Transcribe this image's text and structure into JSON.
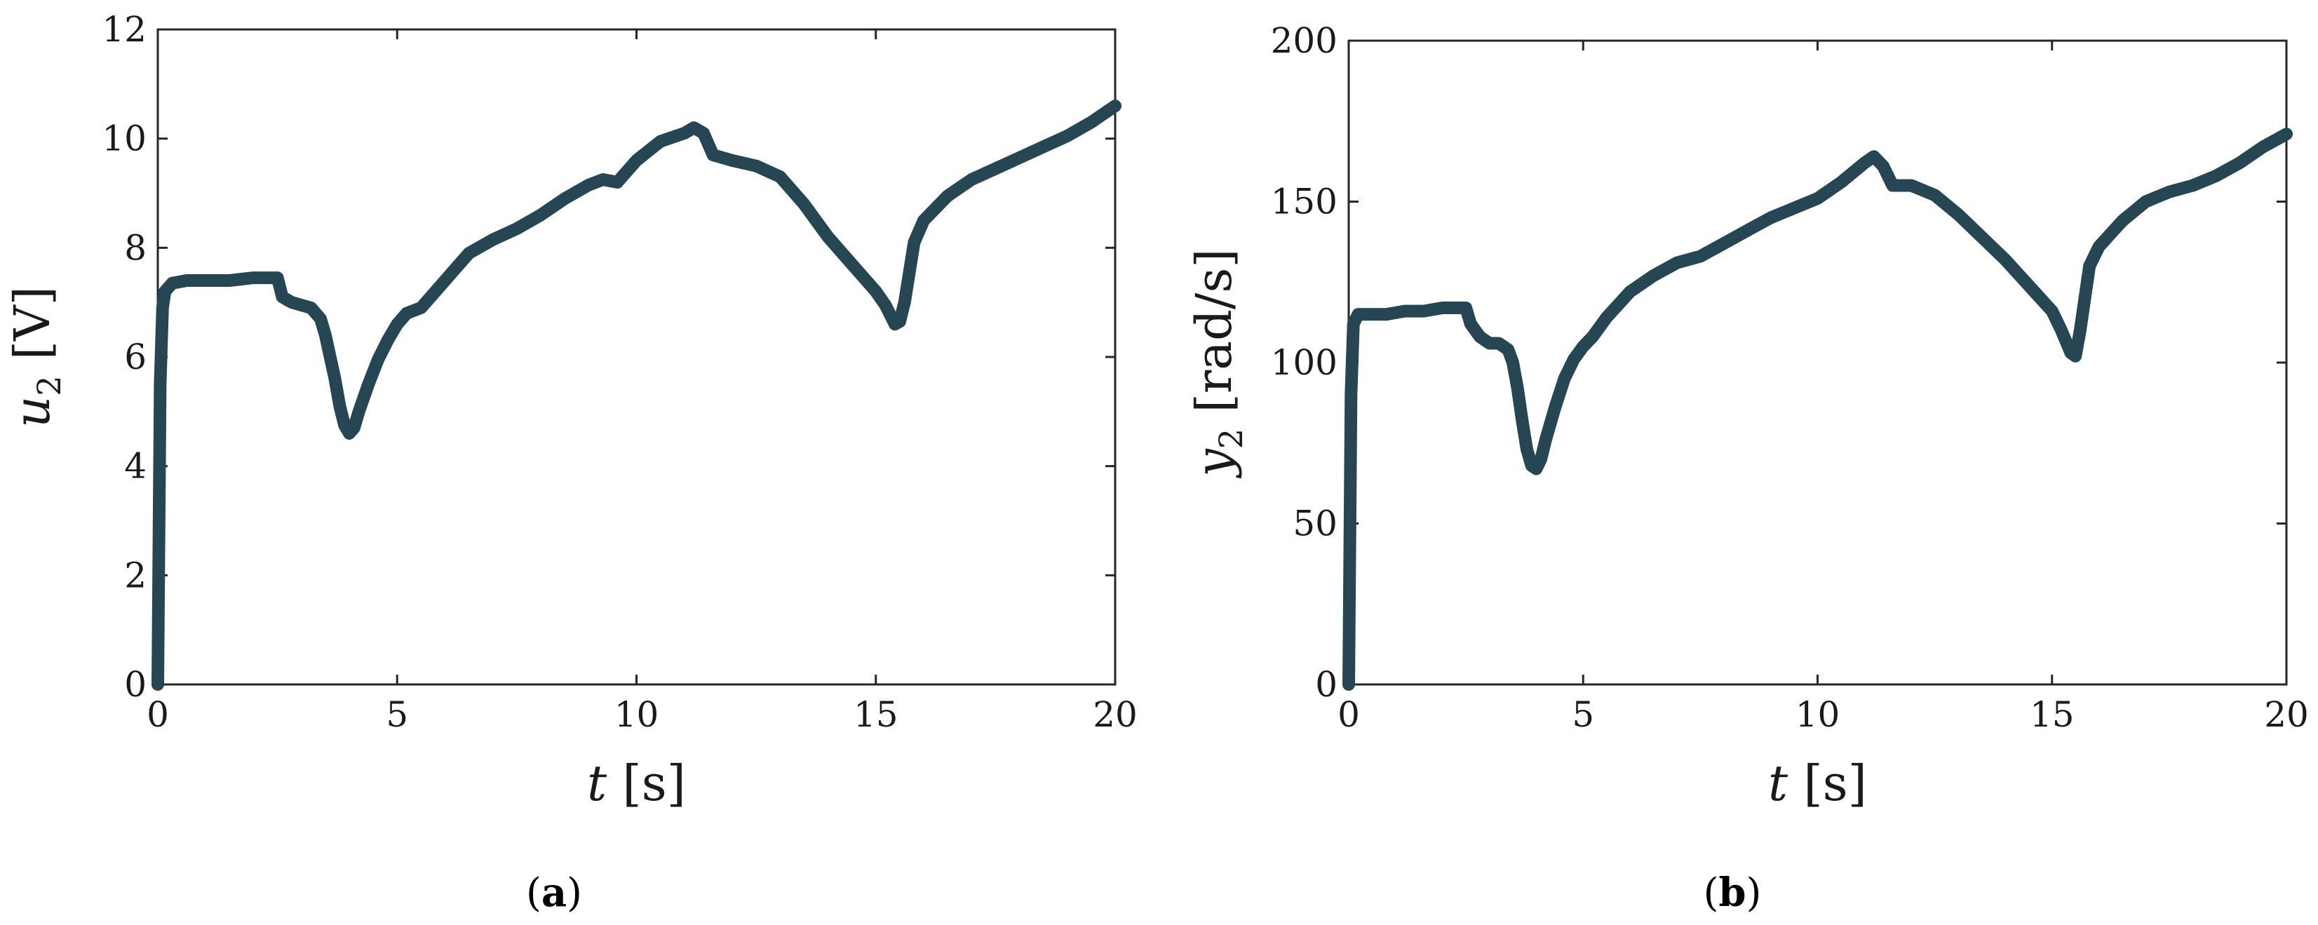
{
  "colors": {
    "series": "#264653",
    "axis": "#262626"
  },
  "chart_data": [
    {
      "type": "line",
      "panel_label": "a",
      "xlabel": {
        "var": "t",
        "unit": "[s]"
      },
      "ylabel": {
        "var": "u",
        "sub": "2",
        "unit": "[V]"
      },
      "xlim": [
        0,
        20
      ],
      "ylim": [
        0,
        12
      ],
      "xticks": [
        0,
        5,
        10,
        15,
        20
      ],
      "yticks": [
        0,
        2,
        4,
        6,
        8,
        10,
        12
      ],
      "grid": false,
      "series": [
        {
          "x": [
            0,
            0.05,
            0.1,
            0.15,
            0.3,
            0.6,
            1.0,
            1.5,
            2.0,
            2.5,
            2.6,
            2.8,
            3.0,
            3.2,
            3.4,
            3.5,
            3.6,
            3.7,
            3.8,
            3.9,
            4.0,
            4.1,
            4.2,
            4.4,
            4.6,
            4.8,
            5.0,
            5.2,
            5.5,
            6.0,
            6.5,
            7.0,
            7.5,
            8.0,
            8.5,
            9.0,
            9.3,
            9.6,
            10.0,
            10.5,
            11.0,
            11.2,
            11.4,
            11.6,
            12.0,
            12.5,
            13.0,
            13.5,
            14.0,
            14.5,
            15.0,
            15.2,
            15.4,
            15.5,
            15.6,
            15.8,
            16.0,
            16.5,
            17.0,
            17.5,
            18.0,
            18.5,
            19.0,
            19.5,
            20.0
          ],
          "y": [
            0,
            5.5,
            6.9,
            7.2,
            7.35,
            7.4,
            7.4,
            7.4,
            7.45,
            7.45,
            7.1,
            7.0,
            6.95,
            6.9,
            6.7,
            6.4,
            6.0,
            5.6,
            5.1,
            4.75,
            4.6,
            4.7,
            5.0,
            5.5,
            5.95,
            6.3,
            6.6,
            6.8,
            6.9,
            7.4,
            7.9,
            8.15,
            8.35,
            8.6,
            8.9,
            9.15,
            9.25,
            9.2,
            9.6,
            9.95,
            10.1,
            10.2,
            10.1,
            9.7,
            9.6,
            9.5,
            9.3,
            8.8,
            8.2,
            7.7,
            7.2,
            6.95,
            6.6,
            6.65,
            7.0,
            8.1,
            8.5,
            8.95,
            9.25,
            9.45,
            9.65,
            9.85,
            10.05,
            10.3,
            10.6
          ]
        }
      ]
    },
    {
      "type": "line",
      "panel_label": "b",
      "xlabel": {
        "var": "t",
        "unit": "[s]"
      },
      "ylabel": {
        "var": "y",
        "sub": "2",
        "unit": "[rad/s]"
      },
      "xlim": [
        0,
        20
      ],
      "ylim": [
        0,
        200
      ],
      "xticks": [
        0,
        5,
        10,
        15,
        20
      ],
      "yticks": [
        0,
        50,
        100,
        150,
        200
      ],
      "grid": false,
      "series": [
        {
          "x": [
            0,
            0.05,
            0.1,
            0.2,
            0.4,
            0.8,
            1.2,
            1.6,
            2.0,
            2.5,
            2.6,
            2.8,
            3.0,
            3.2,
            3.4,
            3.5,
            3.6,
            3.7,
            3.8,
            3.9,
            4.0,
            4.1,
            4.2,
            4.4,
            4.6,
            4.8,
            5.0,
            5.2,
            5.5,
            6.0,
            6.5,
            7.0,
            7.5,
            8.0,
            8.5,
            9.0,
            9.5,
            10.0,
            10.5,
            11.0,
            11.2,
            11.4,
            11.6,
            12.0,
            12.5,
            13.0,
            13.5,
            14.0,
            14.5,
            15.0,
            15.2,
            15.4,
            15.5,
            15.6,
            15.8,
            16.0,
            16.5,
            17.0,
            17.5,
            18.0,
            18.5,
            19.0,
            19.5,
            20.0
          ],
          "y": [
            0,
            90,
            112,
            115,
            115,
            115,
            116,
            116,
            117,
            117,
            112,
            108,
            106,
            106,
            104,
            100,
            92,
            82,
            73,
            68,
            67,
            70,
            76,
            86,
            95,
            101,
            105,
            108,
            114,
            122,
            127,
            131,
            133,
            137,
            141,
            145,
            148,
            151,
            156,
            162,
            164,
            161,
            155,
            155,
            152,
            146,
            139,
            132,
            124,
            116,
            110,
            103,
            102,
            110,
            130,
            136,
            144,
            150,
            153,
            155,
            158,
            162,
            167,
            171
          ]
        }
      ]
    }
  ]
}
